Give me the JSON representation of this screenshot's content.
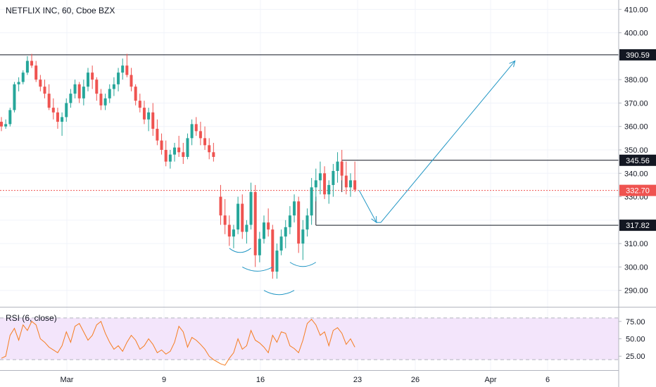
{
  "chart_data": {
    "type": "candlestick",
    "title": "NETFLIX INC, 60, Cboe BZX",
    "price_axis": {
      "ticks": [
        290,
        300,
        310,
        320,
        330,
        340,
        350,
        360,
        370,
        380,
        390,
        400,
        410
      ],
      "tick_labels": [
        "290.00",
        "300.00",
        "310.00",
        "",
        "330.00",
        "340.00",
        "350.00",
        "360.00",
        "370.00",
        "380.00",
        "",
        "400.00",
        "410.00"
      ],
      "ylim": [
        283,
        414
      ]
    },
    "time_axis": {
      "labels": [
        "Mar",
        "9",
        "16",
        "23",
        "26",
        "Apr",
        "6"
      ]
    },
    "price_tags": [
      {
        "value": 390.59,
        "label": "390.59",
        "color": "#131722"
      },
      {
        "value": 345.56,
        "label": "345.56",
        "color": "#131722"
      },
      {
        "value": 332.7,
        "label": "332.70",
        "color": "#ef5350"
      },
      {
        "value": 317.82,
        "label": "317.82",
        "color": "#131722"
      }
    ],
    "candles": [
      [
        362,
        364,
        358,
        360
      ],
      [
        360,
        363,
        359,
        361
      ],
      [
        361,
        368,
        360,
        367
      ],
      [
        367,
        379,
        366,
        378
      ],
      [
        378,
        381,
        375,
        379
      ],
      [
        379,
        384,
        378,
        383
      ],
      [
        383,
        390,
        382,
        388
      ],
      [
        388,
        391,
        385,
        386
      ],
      [
        386,
        388,
        379,
        380
      ],
      [
        380,
        382,
        375,
        377
      ],
      [
        377,
        380,
        372,
        374
      ],
      [
        374,
        378,
        367,
        368
      ],
      [
        368,
        372,
        363,
        366
      ],
      [
        366,
        368,
        359,
        362
      ],
      [
        362,
        366,
        356,
        364
      ],
      [
        364,
        372,
        362,
        370
      ],
      [
        370,
        376,
        368,
        374
      ],
      [
        374,
        380,
        372,
        378
      ],
      [
        378,
        379,
        370,
        372
      ],
      [
        372,
        380,
        369,
        377
      ],
      [
        377,
        385,
        375,
        383
      ],
      [
        383,
        386,
        376,
        380
      ],
      [
        380,
        381,
        371,
        374
      ],
      [
        374,
        376,
        367,
        369
      ],
      [
        369,
        374,
        367,
        372
      ],
      [
        372,
        378,
        370,
        376
      ],
      [
        376,
        381,
        373,
        378
      ],
      [
        378,
        385,
        375,
        383
      ],
      [
        383,
        389,
        380,
        386
      ],
      [
        386,
        391,
        381,
        382
      ],
      [
        382,
        385,
        375,
        377
      ],
      [
        377,
        378,
        369,
        371
      ],
      [
        371,
        374,
        366,
        368
      ],
      [
        368,
        371,
        361,
        363
      ],
      [
        363,
        368,
        358,
        366
      ],
      [
        366,
        370,
        356,
        359
      ],
      [
        359,
        363,
        352,
        354
      ],
      [
        354,
        357,
        348,
        350
      ],
      [
        350,
        354,
        343,
        345
      ],
      [
        345,
        350,
        342,
        348
      ],
      [
        348,
        353,
        345,
        351
      ],
      [
        351,
        356,
        347,
        349
      ],
      [
        349,
        353,
        344,
        347
      ],
      [
        347,
        357,
        346,
        355
      ],
      [
        355,
        363,
        352,
        361
      ],
      [
        361,
        364,
        356,
        358
      ],
      [
        358,
        362,
        352,
        355
      ],
      [
        355,
        360,
        350,
        352
      ],
      [
        352,
        355,
        346,
        349
      ],
      [
        349,
        353,
        345,
        347
      ],
      [
        330,
        335,
        318,
        322
      ],
      [
        322,
        329,
        314,
        318
      ],
      [
        318,
        322,
        309,
        313
      ],
      [
        313,
        318,
        308,
        316
      ],
      [
        316,
        330,
        314,
        327
      ],
      [
        327,
        331,
        312,
        315
      ],
      [
        315,
        320,
        310,
        318
      ],
      [
        318,
        336,
        316,
        332
      ],
      [
        332,
        335,
        300,
        305
      ],
      [
        305,
        315,
        302,
        312
      ],
      [
        312,
        322,
        310,
        319
      ],
      [
        319,
        325,
        313,
        316
      ],
      [
        316,
        318,
        295,
        298
      ],
      [
        298,
        310,
        295,
        307
      ],
      [
        307,
        316,
        305,
        313
      ],
      [
        313,
        320,
        308,
        317
      ],
      [
        317,
        326,
        314,
        322
      ],
      [
        322,
        331,
        319,
        328
      ],
      [
        328,
        330,
        306,
        310
      ],
      [
        310,
        320,
        303,
        316
      ],
      [
        316,
        325,
        313,
        322
      ],
      [
        322,
        338,
        318,
        334
      ],
      [
        334,
        342,
        328,
        337
      ],
      [
        337,
        345,
        331,
        340
      ],
      [
        340,
        343,
        329,
        331
      ],
      [
        331,
        337,
        327,
        335
      ],
      [
        335,
        344,
        330,
        341
      ],
      [
        341,
        349,
        336,
        345
      ],
      [
        345,
        350,
        337,
        339
      ],
      [
        339,
        345,
        331,
        334
      ],
      [
        334,
        340,
        330,
        337
      ],
      [
        337,
        345,
        332,
        333
      ]
    ],
    "rsi": {
      "title": "RSI (6, close)",
      "ticks": [
        25,
        50,
        75
      ],
      "tick_labels": [
        "25.00",
        "50.00",
        "75.00"
      ],
      "band": [
        20,
        80
      ],
      "values": [
        22,
        25,
        55,
        65,
        48,
        70,
        62,
        75,
        70,
        50,
        45,
        38,
        34,
        30,
        40,
        60,
        45,
        68,
        72,
        60,
        48,
        55,
        70,
        75,
        58,
        45,
        35,
        40,
        32,
        45,
        55,
        48,
        35,
        40,
        50,
        42,
        30,
        34,
        28,
        32,
        45,
        68,
        60,
        38,
        52,
        48,
        42,
        35,
        25,
        20,
        14,
        12,
        22,
        30,
        50,
        35,
        40,
        62,
        48,
        44,
        38,
        30,
        55,
        45,
        60,
        58,
        40,
        36,
        30,
        48,
        72,
        78,
        70,
        55,
        60,
        40,
        62,
        66,
        58,
        42,
        50,
        38
      ]
    },
    "annotations": {
      "arrow_down": {
        "from": [
          82,
          332.7
        ],
        "to": [
          86,
          319
        ]
      },
      "arrow_up": {
        "from": [
          87,
          319
        ],
        "to": [
          118,
          388
        ]
      }
    }
  }
}
